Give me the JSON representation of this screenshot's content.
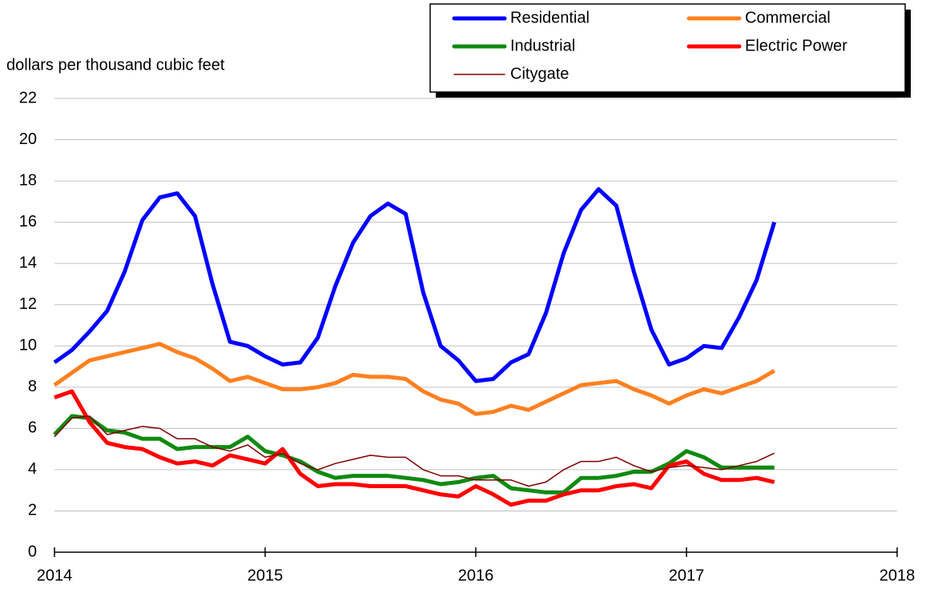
{
  "chart_data": {
    "type": "line",
    "y_label": "dollars per thousand cubic feet",
    "x": [
      2014,
      2014.083,
      2014.167,
      2014.25,
      2014.333,
      2014.417,
      2014.5,
      2014.583,
      2014.667,
      2014.75,
      2014.833,
      2014.917,
      2015,
      2015.083,
      2015.167,
      2015.25,
      2015.333,
      2015.417,
      2015.5,
      2015.583,
      2015.667,
      2015.75,
      2015.833,
      2015.917,
      2016,
      2016.083,
      2016.167,
      2016.25,
      2016.333,
      2016.417,
      2016.5,
      2016.583,
      2016.667,
      2016.75,
      2016.833,
      2016.917,
      2017,
      2017.083,
      2017.167,
      2017.25,
      2017.333,
      2017.417
    ],
    "xlim": [
      2014,
      2018
    ],
    "xticks": [
      2014,
      2015,
      2016,
      2017,
      2018
    ],
    "ylim": [
      0,
      22
    ],
    "yticks": [
      0,
      2,
      4,
      6,
      8,
      10,
      12,
      14,
      16,
      18,
      20,
      22
    ],
    "grid": true,
    "legend": "top right",
    "series": [
      {
        "name": "Residential",
        "color": "#0000ff",
        "width": 5,
        "values": [
          9.2,
          9.8,
          10.7,
          11.7,
          13.6,
          16.1,
          17.2,
          17.4,
          16.3,
          13.0,
          10.2,
          10.0,
          9.5,
          9.1,
          9.2,
          10.4,
          12.9,
          15.0,
          16.3,
          16.9,
          16.4,
          12.6,
          10.0,
          9.3,
          8.3,
          8.4,
          9.2,
          9.6,
          11.6,
          14.5,
          16.6,
          17.6,
          16.8,
          13.6,
          10.8,
          9.1,
          9.4,
          10.0,
          9.9,
          11.4,
          13.2,
          16.0
        ]
      },
      {
        "name": "Commercial",
        "color": "#ff8020",
        "width": 5,
        "values": [
          8.1,
          8.7,
          9.3,
          9.5,
          9.7,
          9.9,
          10.1,
          9.7,
          9.4,
          8.9,
          8.3,
          8.5,
          8.2,
          7.9,
          7.9,
          8.0,
          8.2,
          8.6,
          8.5,
          8.5,
          8.4,
          7.8,
          7.4,
          7.2,
          6.7,
          6.8,
          7.1,
          6.9,
          7.3,
          7.7,
          8.1,
          8.2,
          8.3,
          7.9,
          7.6,
          7.2,
          7.6,
          7.9,
          7.7,
          8.0,
          8.3,
          8.8
        ]
      },
      {
        "name": "Industrial",
        "color": "#108a10",
        "width": 5,
        "values": [
          5.7,
          6.6,
          6.5,
          5.9,
          5.8,
          5.5,
          5.5,
          5.0,
          5.1,
          5.1,
          5.1,
          5.6,
          4.9,
          4.7,
          4.4,
          3.9,
          3.6,
          3.7,
          3.7,
          3.7,
          3.6,
          3.5,
          3.3,
          3.4,
          3.6,
          3.7,
          3.1,
          3.0,
          2.9,
          2.9,
          3.6,
          3.6,
          3.7,
          3.9,
          3.9,
          4.3,
          4.9,
          4.6,
          4.1,
          4.1,
          4.1,
          4.1
        ]
      },
      {
        "name": "Electric Power",
        "color": "#ff0000",
        "width": 5,
        "values": [
          7.5,
          7.8,
          6.3,
          5.3,
          5.1,
          5.0,
          4.6,
          4.3,
          4.4,
          4.2,
          4.7,
          4.5,
          4.3,
          5.0,
          3.8,
          3.2,
          3.3,
          3.3,
          3.2,
          3.2,
          3.2,
          3.0,
          2.8,
          2.7,
          3.2,
          2.8,
          2.3,
          2.5,
          2.5,
          2.8,
          3.0,
          3.0,
          3.2,
          3.3,
          3.1,
          4.2,
          4.4,
          3.8,
          3.5,
          3.5,
          3.6,
          3.4
        ]
      },
      {
        "name": "Citygate",
        "color": "#800000",
        "width": 1.5,
        "values": [
          5.6,
          6.5,
          6.6,
          5.7,
          5.9,
          6.1,
          6.0,
          5.5,
          5.5,
          5.1,
          4.9,
          5.2,
          4.6,
          4.8,
          4.3,
          4.0,
          4.3,
          4.5,
          4.7,
          4.6,
          4.6,
          4.0,
          3.7,
          3.7,
          3.5,
          3.5,
          3.5,
          3.2,
          3.4,
          4.0,
          4.4,
          4.4,
          4.6,
          4.2,
          3.9,
          4.1,
          4.2,
          4.1,
          4.0,
          4.2,
          4.4,
          4.8
        ]
      }
    ]
  }
}
